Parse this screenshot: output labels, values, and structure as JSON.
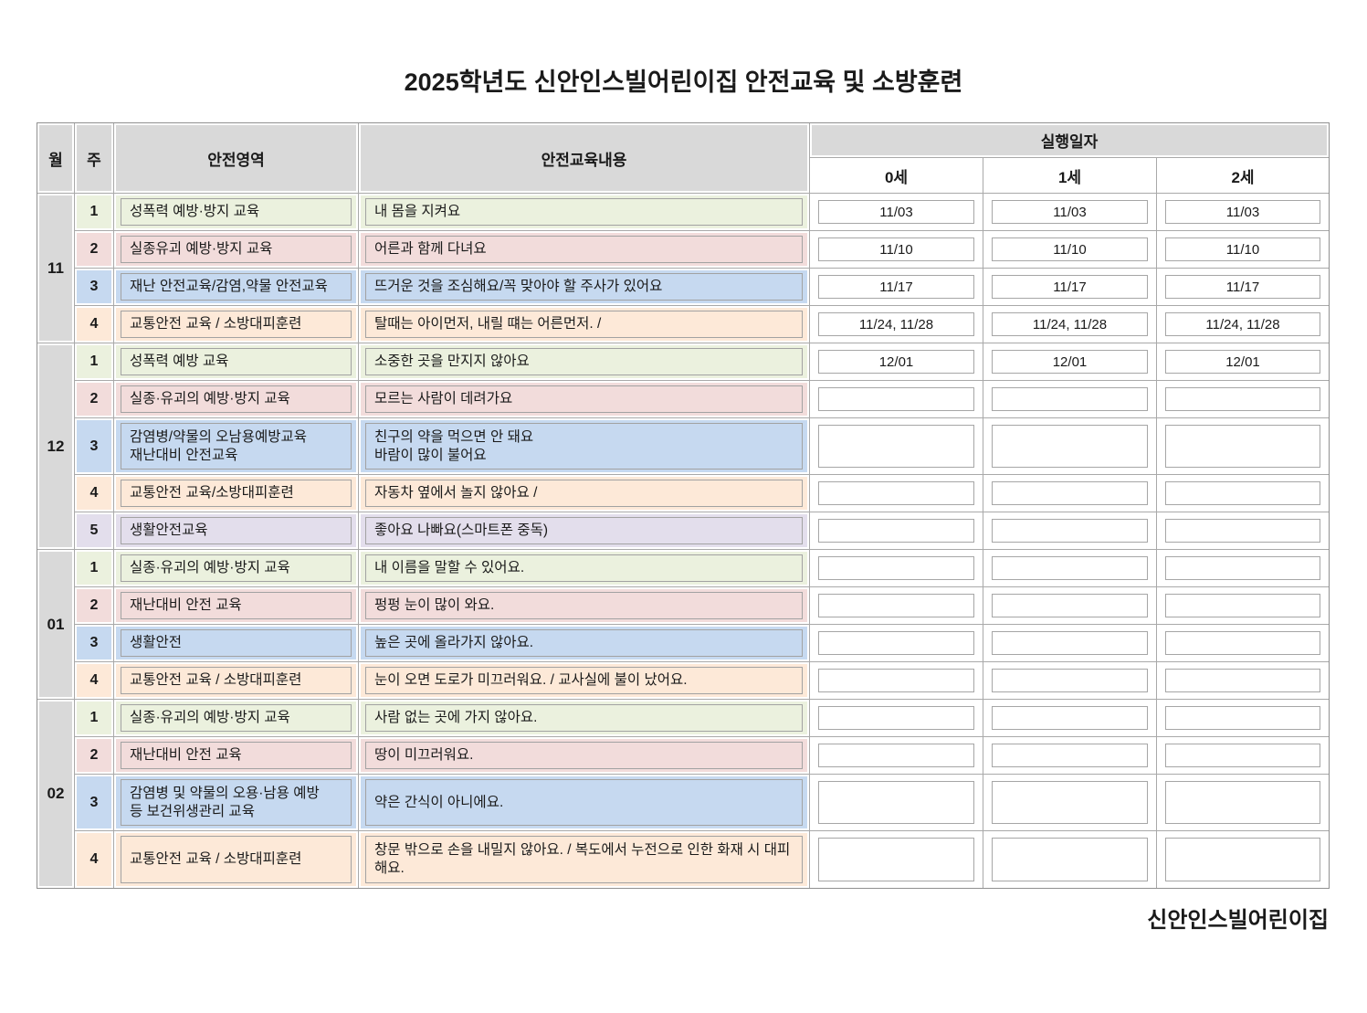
{
  "page": {
    "title": "2025학년도 신안인스빌어린이집 안전교육 및 소방훈련",
    "footer": "신안인스빌어린이집"
  },
  "table": {
    "headers": {
      "month": "월",
      "week": "주",
      "area": "안전영역",
      "content": "안전교육내용",
      "dates": "실행일자",
      "age_groups": [
        "0세",
        "1세",
        "2세"
      ]
    },
    "colors": {
      "green": "#ebf1de",
      "pink": "#f2dcdb",
      "blue": "#c6d9f0",
      "orange": "#fde9d8",
      "lavender": "#e3deec",
      "header_gray": "#d9d9d9"
    },
    "months": [
      {
        "label": "11",
        "rows": [
          {
            "week": "1",
            "color": "green",
            "area": "성폭력 예방·방지 교육",
            "content": "내 몸을 지켜요",
            "dates": [
              "11/03",
              "11/03",
              "11/03"
            ]
          },
          {
            "week": "2",
            "color": "pink",
            "area": "실종유괴 예방·방지 교육",
            "content": "어른과 함께 다녀요",
            "dates": [
              "11/10",
              "11/10",
              "11/10"
            ]
          },
          {
            "week": "3",
            "color": "blue",
            "area": "재난 안전교육/감염,약물 안전교육",
            "content": "뜨거운 것을 조심해요/꼭 맞아야 할 주사가 있어요",
            "dates": [
              "11/17",
              "11/17",
              "11/17"
            ]
          },
          {
            "week": "4",
            "color": "orange",
            "area": "교통안전 교육 / 소방대피훈련",
            "content": "탈때는 아이먼저, 내릴 떄는 어른먼저. /",
            "dates": [
              "11/24, 11/28",
              "11/24, 11/28",
              "11/24, 11/28"
            ]
          }
        ]
      },
      {
        "label": "12",
        "rows": [
          {
            "week": "1",
            "color": "green",
            "area": "성폭력 예방 교육",
            "content": "소중한 곳을 만지지 않아요",
            "dates": [
              "12/01",
              "12/01",
              "12/01"
            ]
          },
          {
            "week": "2",
            "color": "pink",
            "area": "실종·유괴의 예방·방지 교육",
            "content": "모르는 사람이 데려가요",
            "dates": [
              "",
              "",
              ""
            ]
          },
          {
            "week": "3",
            "color": "blue",
            "tall": true,
            "area": "감염병/약물의 오남용예방교육\n재난대비 안전교육",
            "content": "친구의 약을 먹으면 안 돼요\n바람이 많이 불어요",
            "dates": [
              "",
              "",
              ""
            ]
          },
          {
            "week": "4",
            "color": "orange",
            "area": "교통안전 교육/소방대피훈련",
            "content": "자동차 옆에서 놀지 않아요 /",
            "dates": [
              "",
              "",
              ""
            ]
          },
          {
            "week": "5",
            "color": "lavender",
            "area": "생활안전교육",
            "content": "좋아요 나빠요(스마트폰 중독)",
            "dates": [
              "",
              "",
              ""
            ]
          }
        ]
      },
      {
        "label": "01",
        "rows": [
          {
            "week": "1",
            "color": "green",
            "area": "실종·유괴의 예방·방지 교육",
            "content": "내 이름을 말할 수 있어요.",
            "dates": [
              "",
              "",
              ""
            ]
          },
          {
            "week": "2",
            "color": "pink",
            "area": "재난대비 안전 교육",
            "content": "펑펑 눈이 많이 와요.",
            "dates": [
              "",
              "",
              ""
            ]
          },
          {
            "week": "3",
            "color": "blue",
            "area": "생활안전",
            "content": "높은 곳에 올라가지 않아요.",
            "dates": [
              "",
              "",
              ""
            ]
          },
          {
            "week": "4",
            "color": "orange",
            "area": "교통안전 교육 / 소방대피훈련",
            "content": "눈이 오면 도로가 미끄러워요. / 교사실에 불이 났어요.",
            "dates": [
              "",
              "",
              ""
            ]
          }
        ]
      },
      {
        "label": "02",
        "rows": [
          {
            "week": "1",
            "color": "green",
            "area": "실종·유괴의 예방·방지 교육",
            "content": "사람 없는 곳에 가지 않아요.",
            "dates": [
              "",
              "",
              ""
            ]
          },
          {
            "week": "2",
            "color": "pink",
            "area": "재난대비 안전 교육",
            "content": "땅이 미끄러워요.",
            "dates": [
              "",
              "",
              ""
            ]
          },
          {
            "week": "3",
            "color": "blue",
            "tall": true,
            "area": "감염병 및 약물의 오용·남용 예방\n등 보건위생관리 교육",
            "content": "약은 간식이 아니에요.",
            "dates": [
              "",
              "",
              ""
            ]
          },
          {
            "week": "4",
            "color": "orange",
            "tall": true,
            "area": "교통안전 교육 / 소방대피훈련",
            "content": "창문 밖으로 손을 내밀지 않아요. / 복도에서 누전으로 인한 화재 시 대피해요.",
            "dates": [
              "",
              "",
              ""
            ]
          }
        ]
      }
    ]
  }
}
